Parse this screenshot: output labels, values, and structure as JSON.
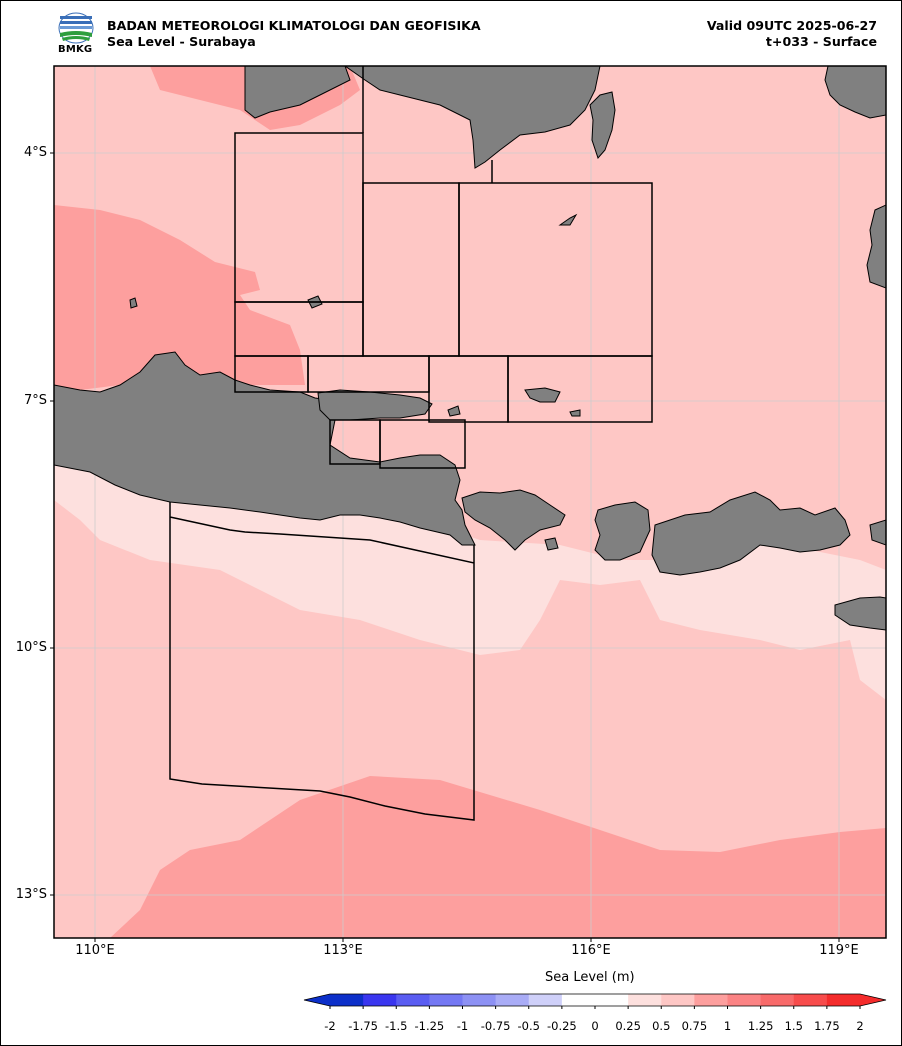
{
  "header": {
    "agency": "BADAN METEOROLOGI KLIMATOLOGI DAN GEOFISIKA",
    "product": "Sea Level - Surabaya",
    "valid": "Valid 09UTC 2025-06-27",
    "lead": "t+033 - Surface",
    "logo_text": "BMKG"
  },
  "map": {
    "region": "Surabaya",
    "lon_range": [
      109.5,
      119.6
    ],
    "lat_range": [
      -13.5,
      -3.0
    ],
    "lat_ticks": [
      -4,
      -7,
      -10,
      -13
    ],
    "lon_ticks": [
      110,
      113,
      116,
      119
    ],
    "lat_labels": [
      "4°S",
      "7°S",
      "10°S",
      "13°S"
    ],
    "lon_labels": [
      "110°E",
      "113°E",
      "116°E",
      "119°E"
    ],
    "land_color": "#808080",
    "gridline_color": "#cccccc"
  },
  "colorbar": {
    "label": "Sea Level (m)",
    "ticks": [
      "-2",
      "-1.75",
      "-1.5",
      "-1.25",
      "-1",
      "-0.75",
      "-0.5",
      "-0.25",
      "0",
      "0.25",
      "0.5",
      "0.75",
      "1",
      "1.25",
      "1.5",
      "1.75",
      "2"
    ],
    "colors": [
      "#0c2fc9",
      "#3a36ef",
      "#5a5df2",
      "#7478f3",
      "#8d91f4",
      "#a9acf6",
      "#cfd0f9",
      "#ffffff",
      "#ffffff",
      "#fde0de",
      "#fec7c5",
      "#fd9f9e",
      "#fb8384",
      "#f86a6a",
      "#f74c4c",
      "#f42c2c"
    ],
    "extend_low_color": "#0c2fc9",
    "extend_high_color": "#f42c2c"
  }
}
